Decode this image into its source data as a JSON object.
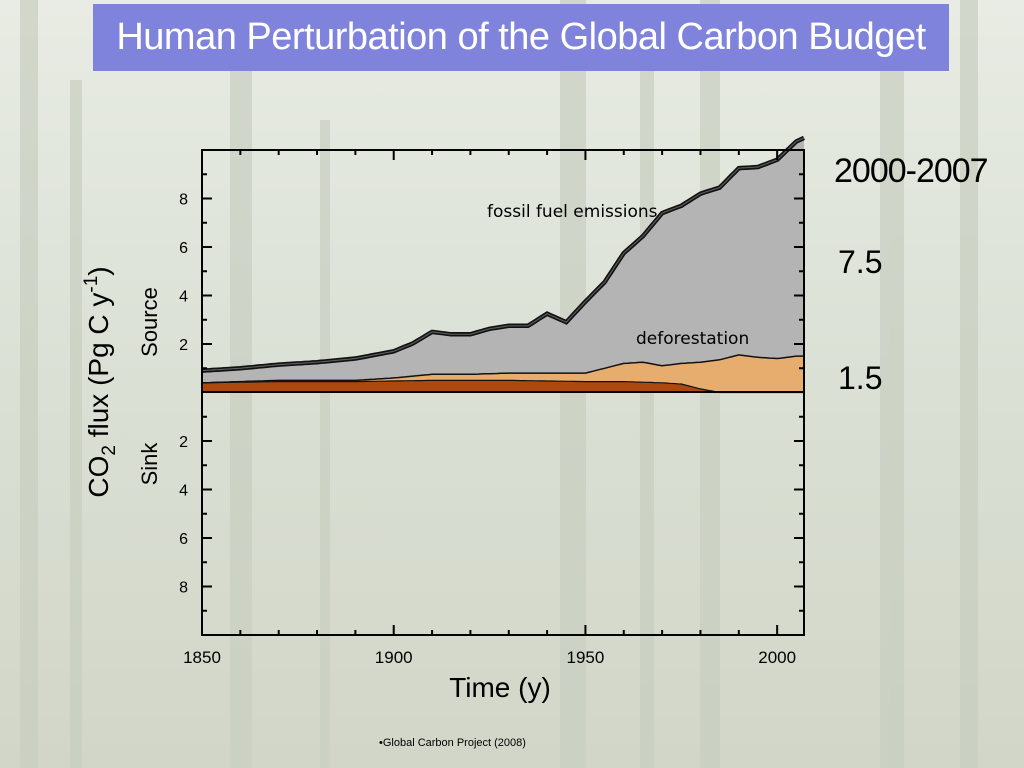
{
  "slide": {
    "title": "Human Perturbation of the Global Carbon Budget",
    "source_note": "•Global Carbon Project (2008)"
  },
  "annotations": {
    "period": "2000-2007",
    "fossil_value": "7.5",
    "deforestation_value": "1.5"
  },
  "chart_data": {
    "type": "area",
    "xlabel": "Time (y)",
    "ylabel_main": "CO",
    "ylabel_sub": "2",
    "ylabel_rest": " flux (Pg C y",
    "ylabel_sup": "-1",
    "ylabel_close": ")",
    "source_label": "Source",
    "sink_label": "Sink",
    "xlim": [
      1850,
      2007
    ],
    "ylim": [
      -10,
      10
    ],
    "x_ticks": [
      1850,
      1900,
      1950,
      2000
    ],
    "y_ticks_source": [
      2,
      4,
      6,
      8
    ],
    "y_ticks_sink": [
      2,
      4,
      6,
      8
    ],
    "colors": {
      "fossil": "#b4b4b4",
      "deforestation_light": "#e6ad6e",
      "deforestation_dark": "#b0480e",
      "line": "#111111"
    },
    "series": [
      {
        "name": "fossil fuel emissions",
        "x": [
          1850,
          1860,
          1870,
          1880,
          1890,
          1900,
          1905,
          1910,
          1915,
          1920,
          1925,
          1930,
          1935,
          1940,
          1945,
          1950,
          1955,
          1960,
          1965,
          1970,
          1975,
          1980,
          1985,
          1990,
          1995,
          2000,
          2005,
          2007
        ],
        "values": [
          0.5,
          0.55,
          0.65,
          0.75,
          0.9,
          1.1,
          1.35,
          1.75,
          1.65,
          1.65,
          1.85,
          1.95,
          1.95,
          2.45,
          2.1,
          2.95,
          3.55,
          4.55,
          5.2,
          6.3,
          6.5,
          6.95,
          7.1,
          7.7,
          7.85,
          8.2,
          8.85,
          9.0
        ]
      },
      {
        "name": "deforestation",
        "x": [
          1850,
          1860,
          1870,
          1880,
          1890,
          1900,
          1910,
          1920,
          1930,
          1940,
          1950,
          1955,
          1960,
          1965,
          1970,
          1975,
          1980,
          1985,
          1990,
          1995,
          2000,
          2005,
          2007
        ],
        "values": [
          0.4,
          0.45,
          0.5,
          0.5,
          0.5,
          0.6,
          0.75,
          0.75,
          0.8,
          0.8,
          0.8,
          1.0,
          1.2,
          1.25,
          1.1,
          1.2,
          1.25,
          1.35,
          1.55,
          1.45,
          1.4,
          1.5,
          1.5
        ]
      },
      {
        "name": "deforestation (dark band)",
        "x": [
          1850,
          1870,
          1890,
          1910,
          1930,
          1950,
          1960,
          1970,
          1975,
          1980,
          1985,
          2007
        ],
        "values": [
          0.4,
          0.45,
          0.45,
          0.5,
          0.5,
          0.45,
          0.45,
          0.4,
          0.35,
          0.15,
          0,
          0
        ]
      }
    ],
    "labels": {
      "fossil": "fossil fuel emissions",
      "deforestation": "deforestation"
    }
  }
}
